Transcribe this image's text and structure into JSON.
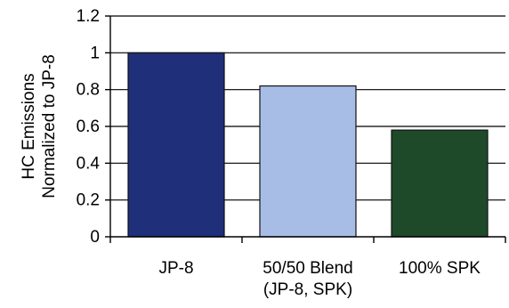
{
  "chart_data": {
    "type": "bar",
    "categories": [
      "JP-8",
      "50/50 Blend\n(JP-8, SPK)",
      "100% SPK"
    ],
    "values": [
      1.0,
      0.82,
      0.58
    ],
    "colors": [
      "#1f2f7a",
      "#a8bde6",
      "#1e4a2a"
    ],
    "title": "",
    "xlabel": "",
    "ylabel": "HC Emissions Normalized to JP-8",
    "ylabel_lines": [
      "HC Emissions",
      "Normalized to JP-8"
    ],
    "ylim": [
      0,
      1.2
    ],
    "yticks": [
      0,
      0.2,
      0.4,
      0.6,
      0.8,
      1,
      1.2
    ],
    "grid": true,
    "legend": "none"
  }
}
